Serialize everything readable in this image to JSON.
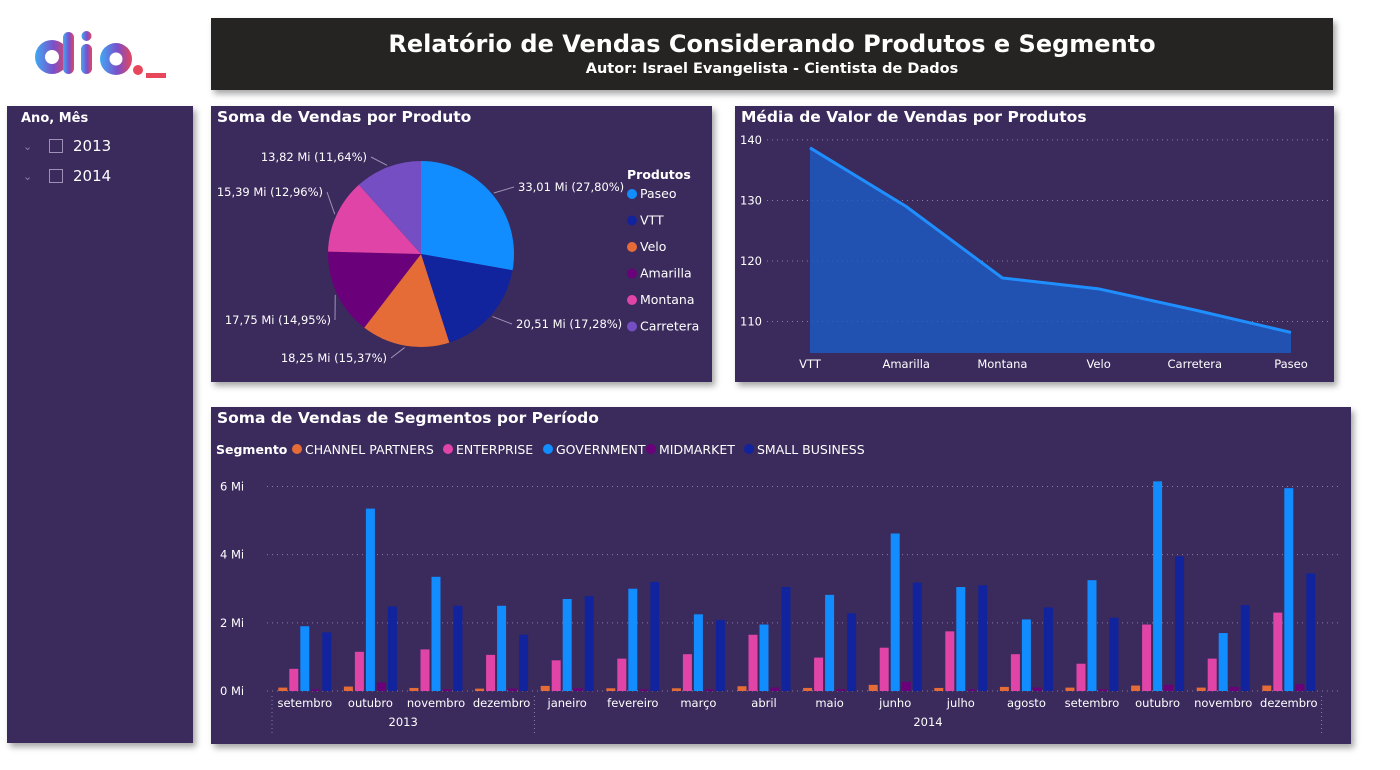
{
  "colors": {
    "background": "#ffffff",
    "card": "#3b2a5c",
    "header": "#252423",
    "paseo": "#118dff",
    "vtt": "#12239e",
    "velo": "#e66c37",
    "amarilla": "#6b007b",
    "montana": "#e044a7",
    "carretera": "#744ec2",
    "area_line": "#1f8fff"
  },
  "header": {
    "title": "Relatório de Vendas Considerando Produtos e Segmento",
    "subtitle": "Autor: Israel Evangelista - Cientista de Dados"
  },
  "logo": {
    "text": "dio._",
    "icon": "dio-logo"
  },
  "slicer": {
    "title": "Ano, Mês",
    "items": [
      {
        "label": "2013",
        "checked": false
      },
      {
        "label": "2014",
        "checked": false
      }
    ]
  },
  "pie": {
    "title": "Soma de Vendas por Produto",
    "legend_title": "Produtos",
    "chart_data": {
      "type": "pie",
      "slices": [
        {
          "name": "Paseo",
          "value": 33.01,
          "label": "33,01 Mi (27,80%)",
          "color": "#118dff"
        },
        {
          "name": "VTT",
          "value": 20.51,
          "label": "20,51 Mi (17,28%)",
          "color": "#12239e"
        },
        {
          "name": "Velo",
          "value": 18.25,
          "label": "18,25 Mi (15,37%)",
          "color": "#e66c37"
        },
        {
          "name": "Amarilla",
          "value": 17.75,
          "label": "17,75 Mi (14,95%)",
          "color": "#6b007b"
        },
        {
          "name": "Montana",
          "value": 15.39,
          "label": "15,39 Mi (12,96%)",
          "color": "#e044a7"
        },
        {
          "name": "Carretera",
          "value": 13.82,
          "label": "13,82 Mi (11,64%)",
          "color": "#744ec2"
        }
      ]
    }
  },
  "line": {
    "title": "Média de Valor de Vendas por Produtos",
    "chart_data": {
      "type": "area",
      "categories": [
        "VTT",
        "Amarilla",
        "Montana",
        "Velo",
        "Carretera",
        "Paseo"
      ],
      "values": [
        138.7,
        129.0,
        117.2,
        115.4,
        111.9,
        108.2
      ],
      "yticks": [
        {
          "value": 110,
          "label": "110"
        },
        {
          "value": 120,
          "label": "120"
        },
        {
          "value": 130,
          "label": "130"
        },
        {
          "value": 140,
          "label": "140"
        }
      ],
      "ylim": [
        104.8,
        142.3
      ],
      "grid": true
    }
  },
  "bars": {
    "title": "Soma de Vendas de Segmentos por Período",
    "legend_title": "Segmento",
    "chart_data": {
      "type": "bar",
      "ylim": [
        0,
        6.6
      ],
      "yticks": [
        {
          "value": 0,
          "label": "0 Mi"
        },
        {
          "value": 2,
          "label": "2 Mi"
        },
        {
          "value": 4,
          "label": "4 Mi"
        },
        {
          "value": 6,
          "label": "6 Mi"
        }
      ],
      "grid": true,
      "legend_position": "top-left",
      "categories": [
        "setembro",
        "outubro",
        "novembro",
        "dezembro",
        "janeiro",
        "fevereiro",
        "março",
        "abril",
        "maio",
        "junho",
        "julho",
        "agosto",
        "setembro",
        "outubro",
        "novembro",
        "dezembro"
      ],
      "groups": [
        {
          "label": "2013",
          "count": 4
        },
        {
          "label": "2014",
          "count": 12
        }
      ],
      "series": [
        {
          "name": "CHANNEL PARTNERS",
          "color": "#e66c37",
          "values": [
            0.1,
            0.13,
            0.09,
            0.07,
            0.15,
            0.08,
            0.08,
            0.14,
            0.09,
            0.18,
            0.09,
            0.12,
            0.1,
            0.16,
            0.1,
            0.16
          ]
        },
        {
          "name": "ENTERPRISE",
          "color": "#e044a7",
          "values": [
            0.65,
            1.15,
            1.22,
            1.06,
            0.9,
            0.95,
            1.08,
            1.65,
            0.98,
            1.27,
            1.75,
            1.08,
            0.8,
            1.95,
            0.95,
            2.3
          ]
        },
        {
          "name": "GOVERNMENT",
          "color": "#118dff",
          "values": [
            1.9,
            5.35,
            3.35,
            2.5,
            2.7,
            3.0,
            2.25,
            1.95,
            2.82,
            4.62,
            3.05,
            2.1,
            3.25,
            6.15,
            1.7,
            5.95
          ]
        },
        {
          "name": "MIDMARKET",
          "color": "#6b007b",
          "values": [
            0.05,
            0.25,
            0.05,
            0.07,
            0.08,
            0.05,
            0.05,
            0.1,
            0.05,
            0.27,
            0.05,
            0.1,
            0.05,
            0.18,
            0.12,
            0.2
          ]
        },
        {
          "name": "SMALL BUSINESS",
          "color": "#12239e",
          "values": [
            1.72,
            2.48,
            2.5,
            1.65,
            2.78,
            3.2,
            2.08,
            3.05,
            2.28,
            3.18,
            3.1,
            2.45,
            2.15,
            3.95,
            2.52,
            3.45
          ]
        }
      ]
    }
  }
}
